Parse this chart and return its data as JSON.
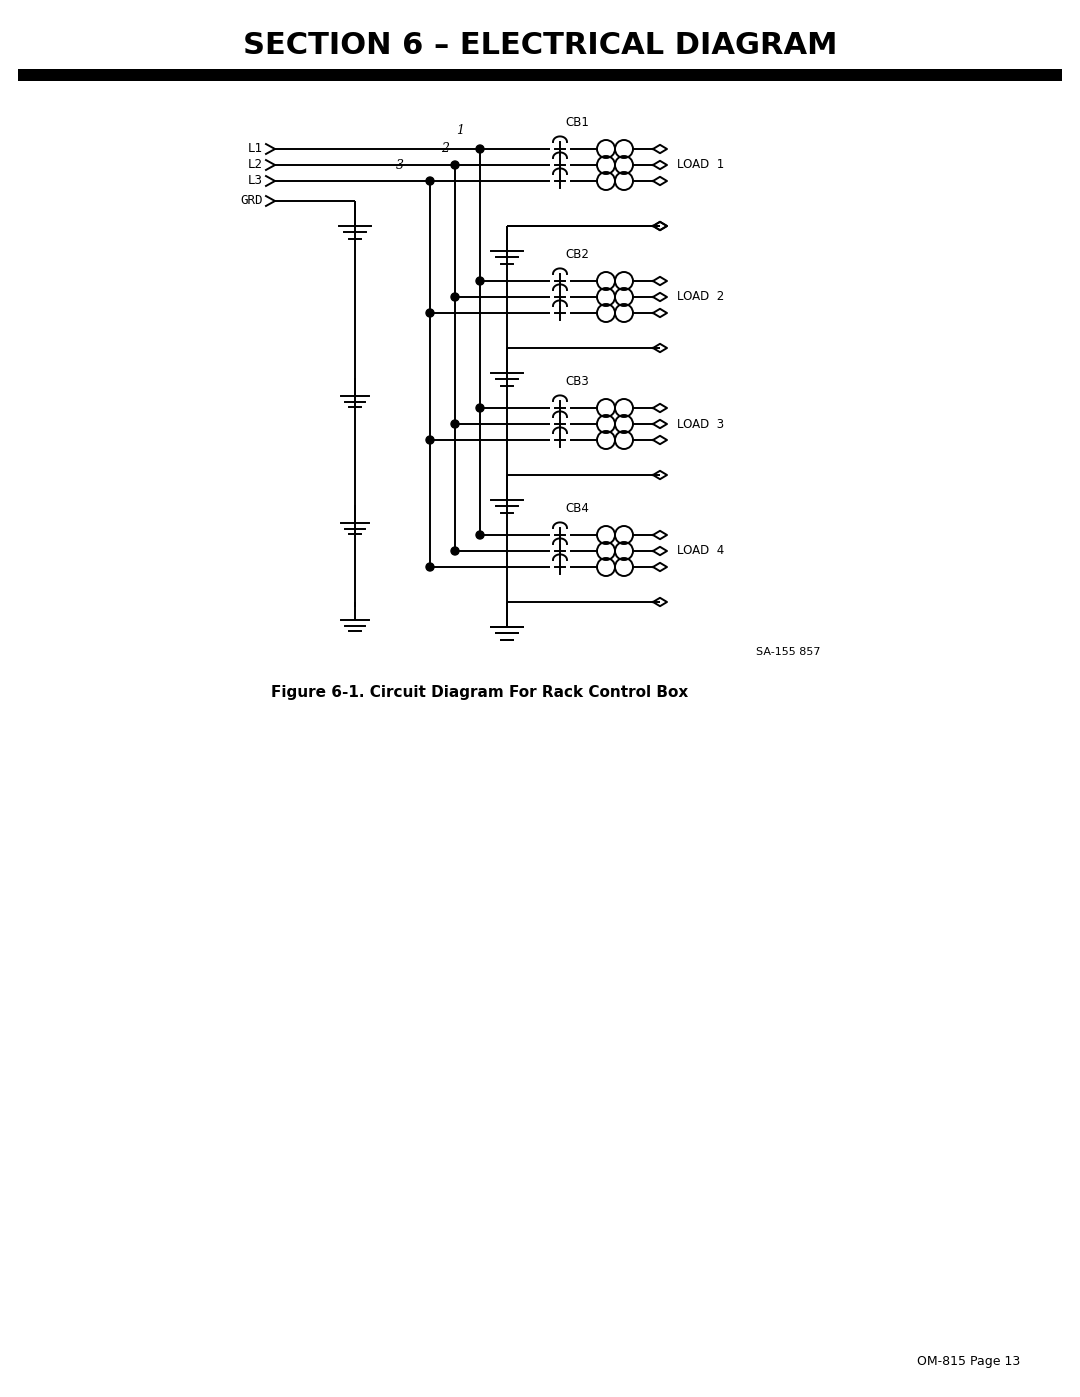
{
  "title": "SECTION 6 – ELECTRICAL DIAGRAM",
  "figure_caption": "Figure 6-1. Circuit Diagram For Rack Control Box",
  "page_ref": "SA-155 857",
  "footer": "OM-815 Page 13",
  "bg_color": "#ffffff",
  "line_color": "#000000",
  "text_color": "#000000",
  "lw": 1.0
}
